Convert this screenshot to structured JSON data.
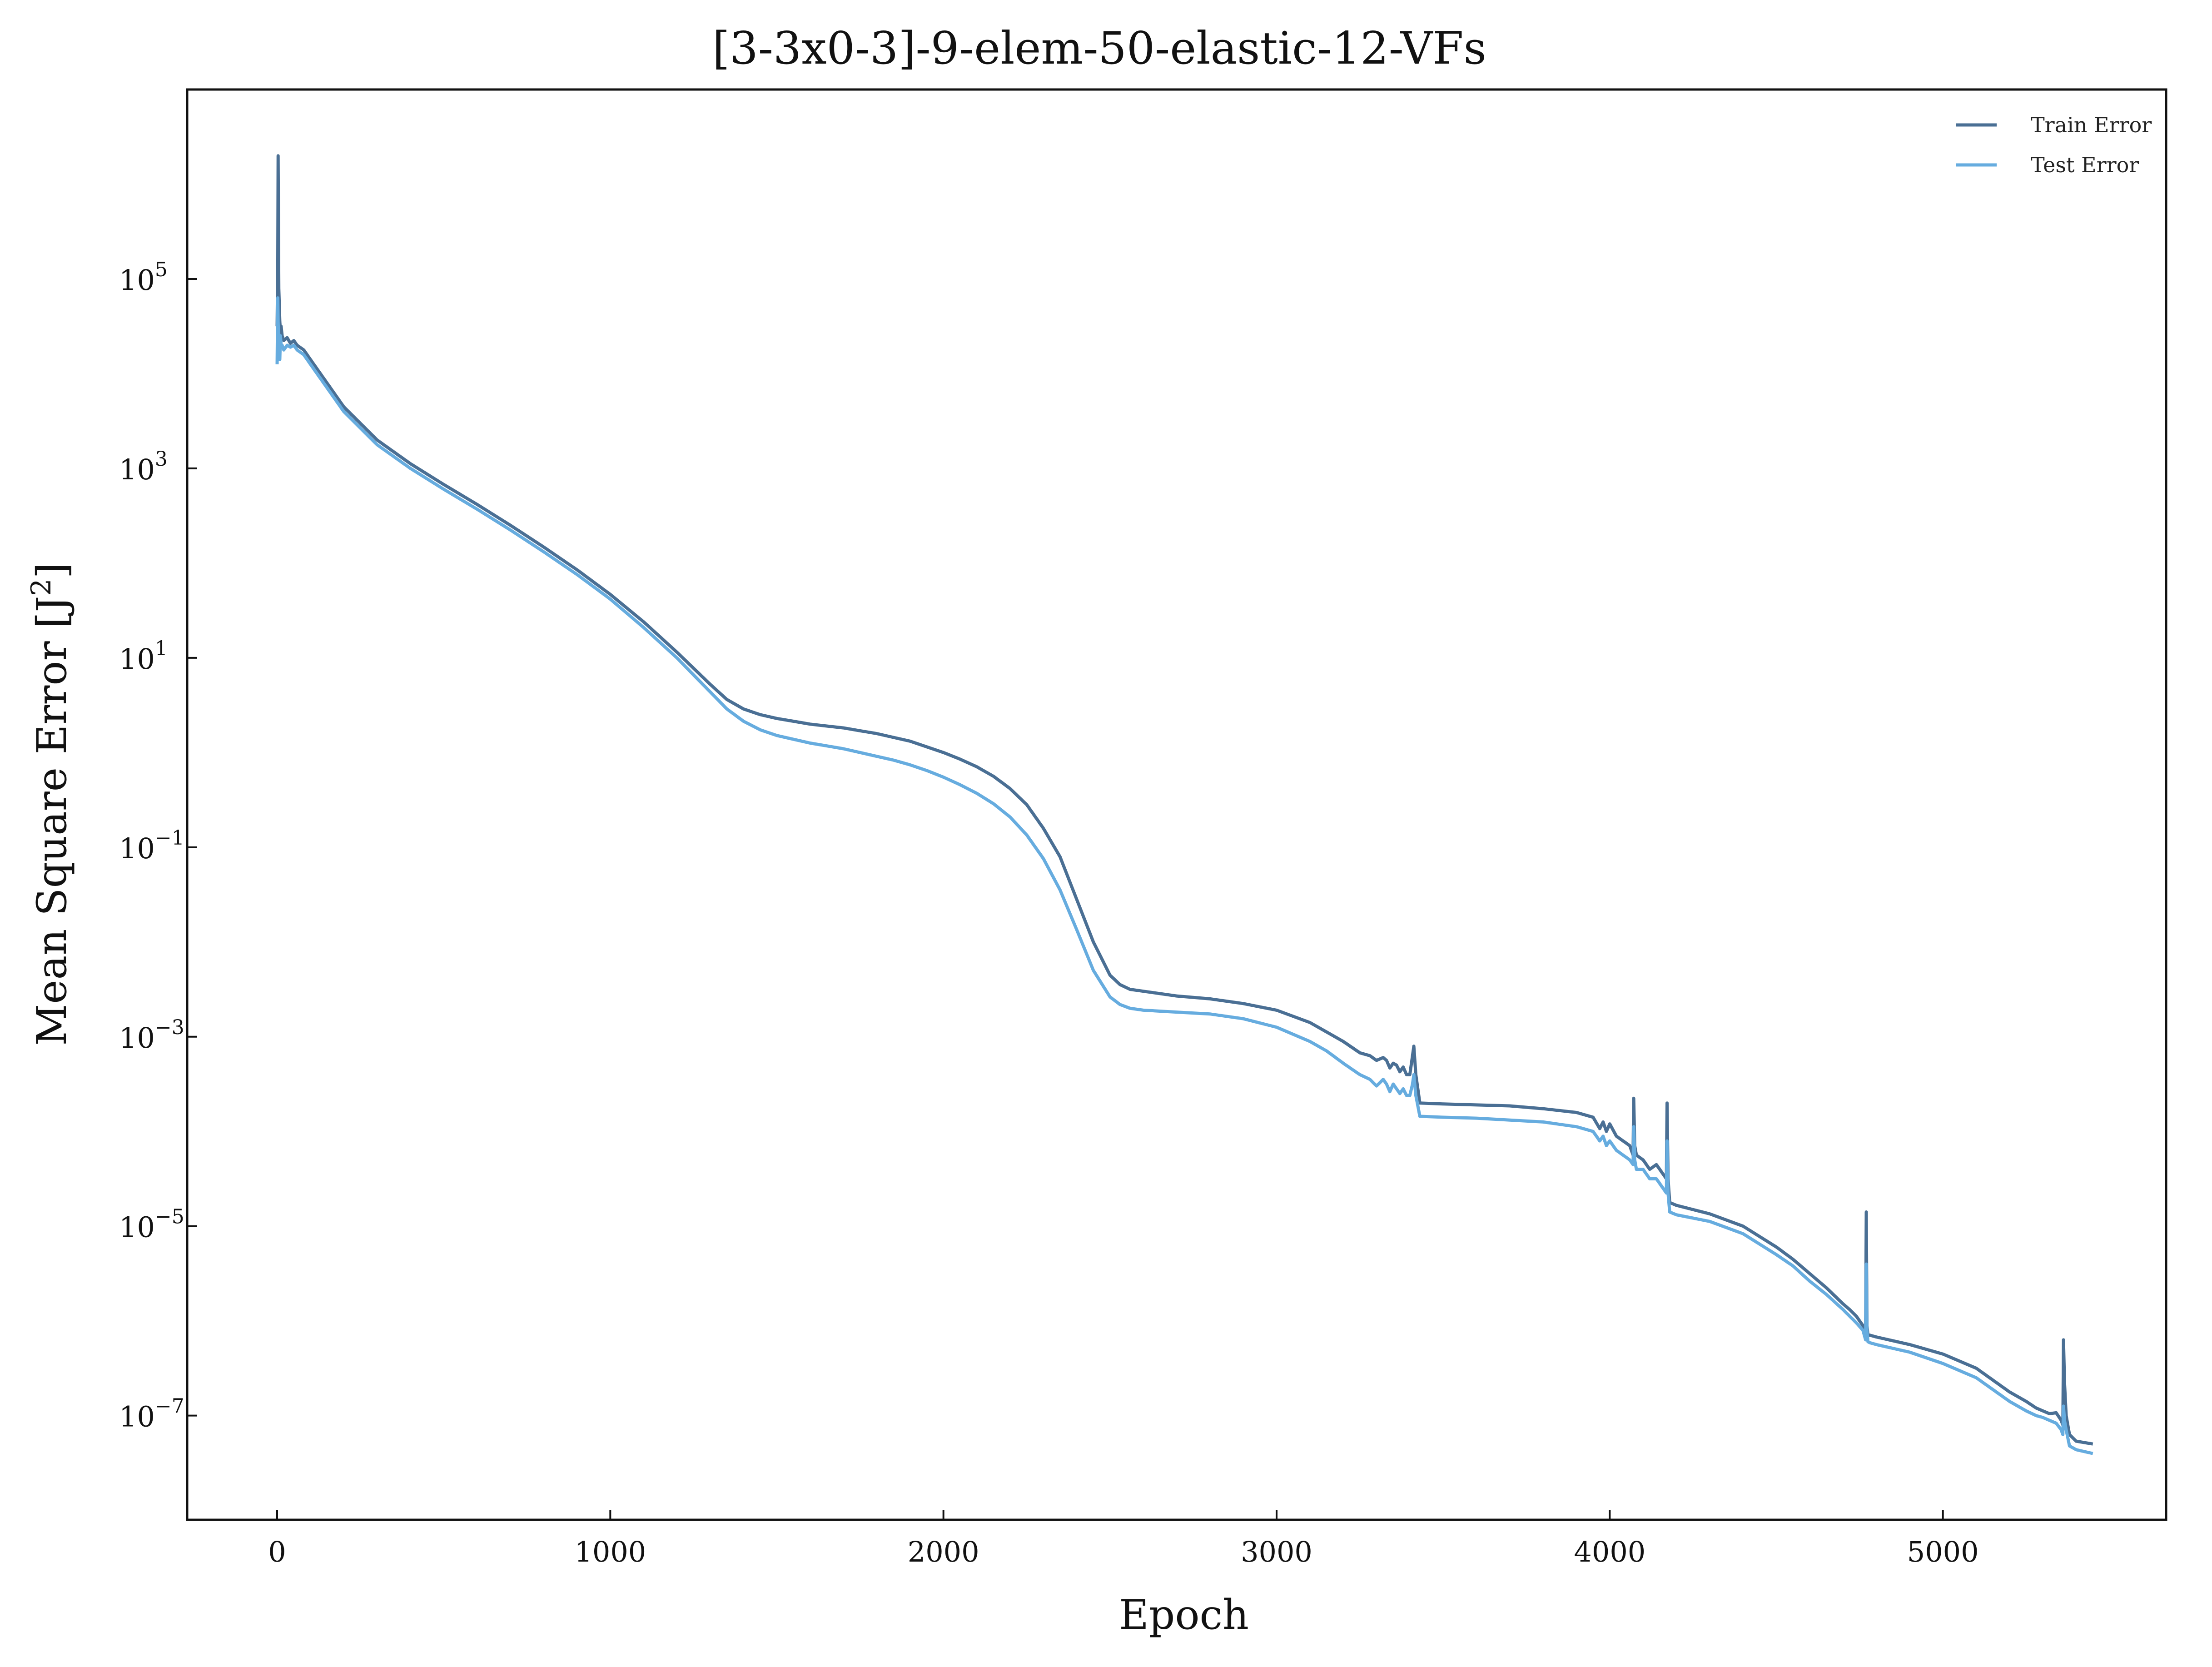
{
  "chart_data": {
    "type": "line",
    "title": "[3-3x0-3]-9-elem-50-elastic-12-VFs",
    "xlabel": "Epoch",
    "ylabel": "Mean Square Error [J",
    "ylabel_exp": "2",
    "ylabel_suffix": "]",
    "y_scale": "log",
    "xlim": [
      -270,
      5670
    ],
    "ylim_log10": [
      -8.1,
      7.0
    ],
    "x_ticks": [
      0,
      1000,
      2000,
      3000,
      4000,
      5000
    ],
    "x_tick_labels": [
      "0",
      "1000",
      "2000",
      "3000",
      "4000",
      "5000"
    ],
    "y_ticks_exp": [
      5,
      3,
      1,
      -1,
      -3,
      -5,
      -7
    ],
    "y_tick_base": "10",
    "y_tick_exp_labels": [
      "5",
      "3",
      "1",
      "−1",
      "−3",
      "−5",
      "−7"
    ],
    "grid": false,
    "legend_position": "top-right",
    "legend": [
      "Train Error",
      "Test Error"
    ],
    "colors": {
      "Train Error": "#4a6f94",
      "Test Error": "#66acdf"
    },
    "series": [
      {
        "name": "Train Error",
        "x": [
          0,
          2,
          3,
          5,
          8,
          10,
          12,
          15,
          20,
          30,
          40,
          50,
          60,
          80,
          100,
          150,
          200,
          300,
          400,
          500,
          600,
          700,
          800,
          900,
          1000,
          1100,
          1200,
          1300,
          1350,
          1400,
          1450,
          1500,
          1550,
          1600,
          1650,
          1700,
          1750,
          1800,
          1850,
          1900,
          1950,
          2000,
          2050,
          2100,
          2150,
          2200,
          2250,
          2300,
          2350,
          2400,
          2450,
          2500,
          2530,
          2560,
          2600,
          2700,
          2800,
          2900,
          3000,
          3100,
          3150,
          3200,
          3250,
          3280,
          3300,
          3320,
          3330,
          3340,
          3350,
          3360,
          3370,
          3380,
          3390,
          3400,
          3408,
          3412,
          3418,
          3430,
          3500,
          3600,
          3700,
          3800,
          3900,
          3950,
          3970,
          3980,
          3990,
          4000,
          4020,
          4040,
          4060,
          4070,
          4072,
          4075,
          4080,
          4100,
          4120,
          4140,
          4160,
          4170,
          4172,
          4175,
          4180,
          4200,
          4300,
          4400,
          4500,
          4550,
          4600,
          4650,
          4700,
          4720,
          4740,
          4760,
          4768,
          4770,
          4772,
          4775,
          4780,
          4800,
          4900,
          5000,
          5100,
          5200,
          5250,
          5280,
          5300,
          5320,
          5340,
          5355,
          5360,
          5362,
          5365,
          5370,
          5380,
          5400,
          5450
        ],
        "y_log10": [
          4.5,
          5.2,
          6.3,
          4.9,
          4.55,
          4.45,
          4.5,
          4.4,
          4.35,
          4.38,
          4.32,
          4.35,
          4.3,
          4.25,
          4.15,
          3.9,
          3.65,
          3.3,
          3.05,
          2.83,
          2.62,
          2.4,
          2.17,
          1.93,
          1.67,
          1.38,
          1.06,
          0.72,
          0.56,
          0.46,
          0.4,
          0.36,
          0.33,
          0.3,
          0.28,
          0.26,
          0.23,
          0.2,
          0.16,
          0.12,
          0.06,
          0.0,
          -0.07,
          -0.15,
          -0.25,
          -0.38,
          -0.55,
          -0.8,
          -1.1,
          -1.55,
          -2.0,
          -2.35,
          -2.45,
          -2.5,
          -2.52,
          -2.57,
          -2.6,
          -2.65,
          -2.72,
          -2.85,
          -2.95,
          -3.05,
          -3.17,
          -3.2,
          -3.25,
          -3.22,
          -3.25,
          -3.33,
          -3.28,
          -3.3,
          -3.37,
          -3.32,
          -3.4,
          -3.4,
          -3.2,
          -3.1,
          -3.4,
          -3.7,
          -3.71,
          -3.72,
          -3.73,
          -3.76,
          -3.8,
          -3.85,
          -3.97,
          -3.9,
          -4.0,
          -3.92,
          -4.05,
          -4.1,
          -4.15,
          -4.25,
          -3.65,
          -4.15,
          -4.25,
          -4.3,
          -4.4,
          -4.35,
          -4.45,
          -4.5,
          -3.7,
          -4.5,
          -4.75,
          -4.78,
          -4.87,
          -5.0,
          -5.22,
          -5.35,
          -5.5,
          -5.65,
          -5.82,
          -5.88,
          -5.95,
          -6.05,
          -6.15,
          -4.85,
          -6.05,
          -6.15,
          -6.15,
          -6.17,
          -6.25,
          -6.35,
          -6.5,
          -6.75,
          -6.85,
          -6.92,
          -6.95,
          -6.98,
          -6.97,
          -7.05,
          -7.1,
          -6.2,
          -6.65,
          -7.0,
          -7.2,
          -7.27,
          -7.3
        ]
      },
      {
        "name": "Test Error",
        "x": [
          0,
          2,
          3,
          5,
          8,
          10,
          12,
          15,
          20,
          30,
          40,
          50,
          60,
          80,
          100,
          150,
          200,
          300,
          400,
          500,
          600,
          700,
          800,
          900,
          1000,
          1100,
          1200,
          1300,
          1350,
          1400,
          1450,
          1500,
          1550,
          1600,
          1650,
          1700,
          1750,
          1800,
          1850,
          1900,
          1950,
          2000,
          2050,
          2100,
          2150,
          2200,
          2250,
          2300,
          2350,
          2400,
          2450,
          2500,
          2530,
          2560,
          2600,
          2700,
          2800,
          2900,
          3000,
          3100,
          3150,
          3200,
          3250,
          3280,
          3300,
          3320,
          3330,
          3340,
          3350,
          3360,
          3370,
          3380,
          3390,
          3400,
          3408,
          3412,
          3418,
          3430,
          3500,
          3600,
          3700,
          3800,
          3900,
          3950,
          3970,
          3980,
          3990,
          4000,
          4020,
          4040,
          4060,
          4070,
          4072,
          4075,
          4080,
          4100,
          4120,
          4140,
          4160,
          4170,
          4172,
          4175,
          4180,
          4200,
          4300,
          4400,
          4500,
          4550,
          4600,
          4650,
          4700,
          4720,
          4740,
          4760,
          4768,
          4770,
          4772,
          4775,
          4780,
          4800,
          4900,
          5000,
          5100,
          5200,
          5250,
          5280,
          5300,
          5320,
          5340,
          5355,
          5360,
          5362,
          5365,
          5370,
          5380,
          5400,
          5450
        ],
        "y_log10": [
          4.1,
          4.8,
          4.55,
          4.3,
          4.15,
          4.4,
          4.3,
          4.3,
          4.25,
          4.3,
          4.28,
          4.3,
          4.25,
          4.2,
          4.1,
          3.85,
          3.6,
          3.25,
          3.0,
          2.78,
          2.57,
          2.35,
          2.12,
          1.88,
          1.62,
          1.32,
          1.0,
          0.64,
          0.46,
          0.33,
          0.24,
          0.18,
          0.14,
          0.1,
          0.07,
          0.04,
          0.0,
          -0.04,
          -0.08,
          -0.13,
          -0.19,
          -0.26,
          -0.34,
          -0.43,
          -0.54,
          -0.68,
          -0.87,
          -1.12,
          -1.45,
          -1.87,
          -2.3,
          -2.58,
          -2.66,
          -2.7,
          -2.72,
          -2.74,
          -2.76,
          -2.81,
          -2.9,
          -3.05,
          -3.15,
          -3.28,
          -3.4,
          -3.45,
          -3.52,
          -3.45,
          -3.5,
          -3.58,
          -3.5,
          -3.55,
          -3.6,
          -3.55,
          -3.62,
          -3.62,
          -3.5,
          -3.4,
          -3.62,
          -3.84,
          -3.85,
          -3.86,
          -3.88,
          -3.9,
          -3.95,
          -4.0,
          -4.1,
          -4.05,
          -4.15,
          -4.1,
          -4.2,
          -4.25,
          -4.3,
          -4.35,
          -3.95,
          -4.3,
          -4.4,
          -4.4,
          -4.5,
          -4.5,
          -4.6,
          -4.65,
          -4.1,
          -4.65,
          -4.85,
          -4.88,
          -4.95,
          -5.08,
          -5.3,
          -5.42,
          -5.58,
          -5.72,
          -5.88,
          -5.95,
          -6.02,
          -6.1,
          -6.2,
          -5.4,
          -6.1,
          -6.22,
          -6.23,
          -6.25,
          -6.33,
          -6.45,
          -6.6,
          -6.85,
          -6.95,
          -7.0,
          -7.02,
          -7.05,
          -7.08,
          -7.15,
          -7.2,
          -6.9,
          -7.05,
          -7.15,
          -7.32,
          -7.36,
          -7.4
        ]
      }
    ]
  }
}
